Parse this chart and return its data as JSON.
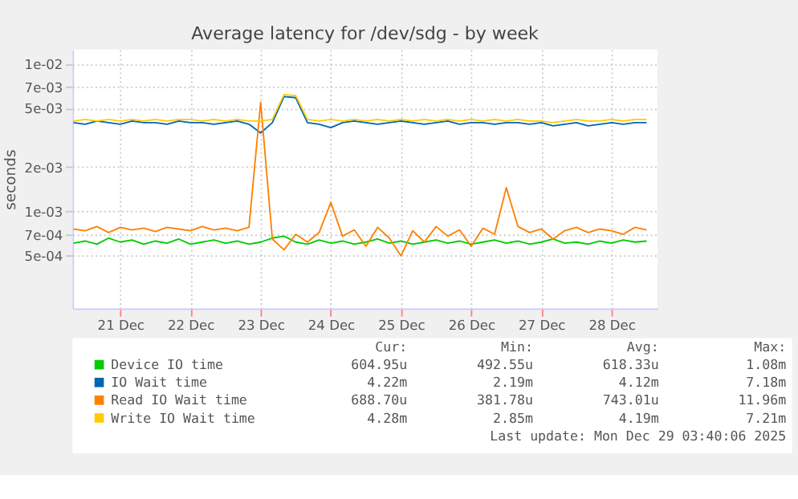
{
  "chart_data": {
    "type": "line",
    "title": "Average latency for /dev/sdg - by week",
    "ylabel": "seconds",
    "log": "y",
    "grid": true,
    "legend": "bottom",
    "xlim": [
      "2025-12-20T19:40",
      "2025-12-29T03:40"
    ],
    "xticks": [
      {
        "value": "2025-12-21T12:00",
        "label": "21 Dec"
      },
      {
        "value": "2025-12-22T12:00",
        "label": "22 Dec"
      },
      {
        "value": "2025-12-23T12:00",
        "label": "23 Dec"
      },
      {
        "value": "2025-12-24T12:00",
        "label": "24 Dec"
      },
      {
        "value": "2025-12-25T12:00",
        "label": "25 Dec"
      },
      {
        "value": "2025-12-26T12:00",
        "label": "26 Dec"
      },
      {
        "value": "2025-12-27T12:00",
        "label": "27 Dec"
      },
      {
        "value": "2025-12-28T12:00",
        "label": "28 Dec"
      }
    ],
    "ylim": [
      0.00022,
      0.0125
    ],
    "yticks": [
      {
        "value": 0.0005,
        "label": "5e-04"
      },
      {
        "value": 0.0007,
        "label": "7e-04"
      },
      {
        "value": 0.001,
        "label": "1e-03"
      },
      {
        "value": 0.002,
        "label": "2e-03"
      },
      {
        "value": 0.005,
        "label": "5e-03"
      },
      {
        "value": 0.007,
        "label": "7e-03"
      },
      {
        "value": 0.01,
        "label": "1e-02"
      }
    ],
    "x": [
      "2025-12-20T20:00",
      "2025-12-21T00:00",
      "2025-12-21T04:00",
      "2025-12-21T08:00",
      "2025-12-21T12:00",
      "2025-12-21T16:00",
      "2025-12-21T20:00",
      "2025-12-22T00:00",
      "2025-12-22T04:00",
      "2025-12-22T08:00",
      "2025-12-22T12:00",
      "2025-12-22T16:00",
      "2025-12-22T20:00",
      "2025-12-23T00:00",
      "2025-12-23T04:00",
      "2025-12-23T08:00",
      "2025-12-23T12:00",
      "2025-12-23T16:00",
      "2025-12-23T20:00",
      "2025-12-24T00:00",
      "2025-12-24T04:00",
      "2025-12-24T08:00",
      "2025-12-24T12:00",
      "2025-12-24T16:00",
      "2025-12-24T20:00",
      "2025-12-25T00:00",
      "2025-12-25T04:00",
      "2025-12-25T08:00",
      "2025-12-25T12:00",
      "2025-12-25T16:00",
      "2025-12-25T20:00",
      "2025-12-26T00:00",
      "2025-12-26T04:00",
      "2025-12-26T08:00",
      "2025-12-26T12:00",
      "2025-12-26T16:00",
      "2025-12-26T20:00",
      "2025-12-27T00:00",
      "2025-12-27T04:00",
      "2025-12-27T08:00",
      "2025-12-27T12:00",
      "2025-12-27T16:00",
      "2025-12-27T20:00",
      "2025-12-28T00:00",
      "2025-12-28T04:00",
      "2025-12-28T08:00",
      "2025-12-28T12:00",
      "2025-12-28T16:00",
      "2025-12-28T20:00",
      "2025-12-29T00:00"
    ],
    "series": [
      {
        "name": "Device IO time",
        "color": "#00cc00",
        "values": [
          0.00061,
          0.00063,
          0.0006,
          0.00066,
          0.00062,
          0.00064,
          0.0006,
          0.00063,
          0.00061,
          0.00065,
          0.0006,
          0.00062,
          0.00064,
          0.00061,
          0.00063,
          0.0006,
          0.00062,
          0.00066,
          0.00068,
          0.00062,
          0.0006,
          0.00064,
          0.00061,
          0.00063,
          0.0006,
          0.00062,
          0.00065,
          0.00061,
          0.00063,
          0.0006,
          0.00062,
          0.00064,
          0.00061,
          0.00063,
          0.0006,
          0.00062,
          0.00064,
          0.00061,
          0.00063,
          0.0006,
          0.00062,
          0.00065,
          0.00061,
          0.00062,
          0.0006,
          0.00063,
          0.00061,
          0.00064,
          0.00062,
          0.00063
        ]
      },
      {
        "name": "IO Wait time",
        "color": "#0066b3",
        "values": [
          0.004,
          0.0039,
          0.0041,
          0.004,
          0.0039,
          0.0041,
          0.004,
          0.004,
          0.0039,
          0.0041,
          0.004,
          0.004,
          0.0039,
          0.004,
          0.0041,
          0.0039,
          0.0034,
          0.004,
          0.006,
          0.0059,
          0.004,
          0.0039,
          0.0037,
          0.004,
          0.0041,
          0.004,
          0.0039,
          0.004,
          0.0041,
          0.004,
          0.0039,
          0.004,
          0.0041,
          0.0039,
          0.004,
          0.004,
          0.0039,
          0.004,
          0.004,
          0.0039,
          0.004,
          0.0038,
          0.0039,
          0.004,
          0.0038,
          0.0039,
          0.004,
          0.0039,
          0.004,
          0.004
        ]
      },
      {
        "name": "Read IO Wait time",
        "color": "#ff8000",
        "values": [
          0.00076,
          0.00074,
          0.00079,
          0.00072,
          0.00078,
          0.00075,
          0.00077,
          0.00073,
          0.00078,
          0.00076,
          0.00074,
          0.00079,
          0.00075,
          0.00077,
          0.00074,
          0.00078,
          0.0055,
          0.00065,
          0.00055,
          0.0007,
          0.00062,
          0.00072,
          0.00115,
          0.00068,
          0.00075,
          0.00058,
          0.00078,
          0.00066,
          0.0005,
          0.00074,
          0.00062,
          0.00079,
          0.00068,
          0.00075,
          0.00058,
          0.00077,
          0.0007,
          0.00145,
          0.00079,
          0.00072,
          0.00076,
          0.00065,
          0.00074,
          0.00078,
          0.00072,
          0.00076,
          0.00074,
          0.0007,
          0.00078,
          0.00075
        ]
      },
      {
        "name": "Write IO Wait time",
        "color": "#ffcc00",
        "values": [
          0.0041,
          0.0042,
          0.0041,
          0.0042,
          0.0041,
          0.0042,
          0.0041,
          0.0042,
          0.0041,
          0.0042,
          0.0042,
          0.0041,
          0.0042,
          0.0041,
          0.0042,
          0.0041,
          0.0041,
          0.0042,
          0.0062,
          0.0061,
          0.0042,
          0.0041,
          0.0042,
          0.0041,
          0.0042,
          0.0041,
          0.0042,
          0.0041,
          0.0042,
          0.0041,
          0.0042,
          0.0041,
          0.0042,
          0.0041,
          0.0042,
          0.0041,
          0.0042,
          0.0041,
          0.0042,
          0.0041,
          0.0041,
          0.004,
          0.0041,
          0.0042,
          0.0041,
          0.0041,
          0.0042,
          0.0041,
          0.0042,
          0.0042
        ]
      }
    ],
    "annotations": [
      "Cur:",
      "Min:",
      "Avg:",
      "Max:",
      "604.95u",
      "492.55u",
      "618.33u",
      "1.08m",
      "4.22m",
      "2.19m",
      "4.12m",
      "7.18m",
      "688.70u",
      "381.78u",
      "743.01u",
      "11.96m",
      "4.28m",
      "2.85m",
      "4.19m",
      "7.21m",
      "Last update: Mon Dec 29 03:40:06 2025"
    ]
  }
}
